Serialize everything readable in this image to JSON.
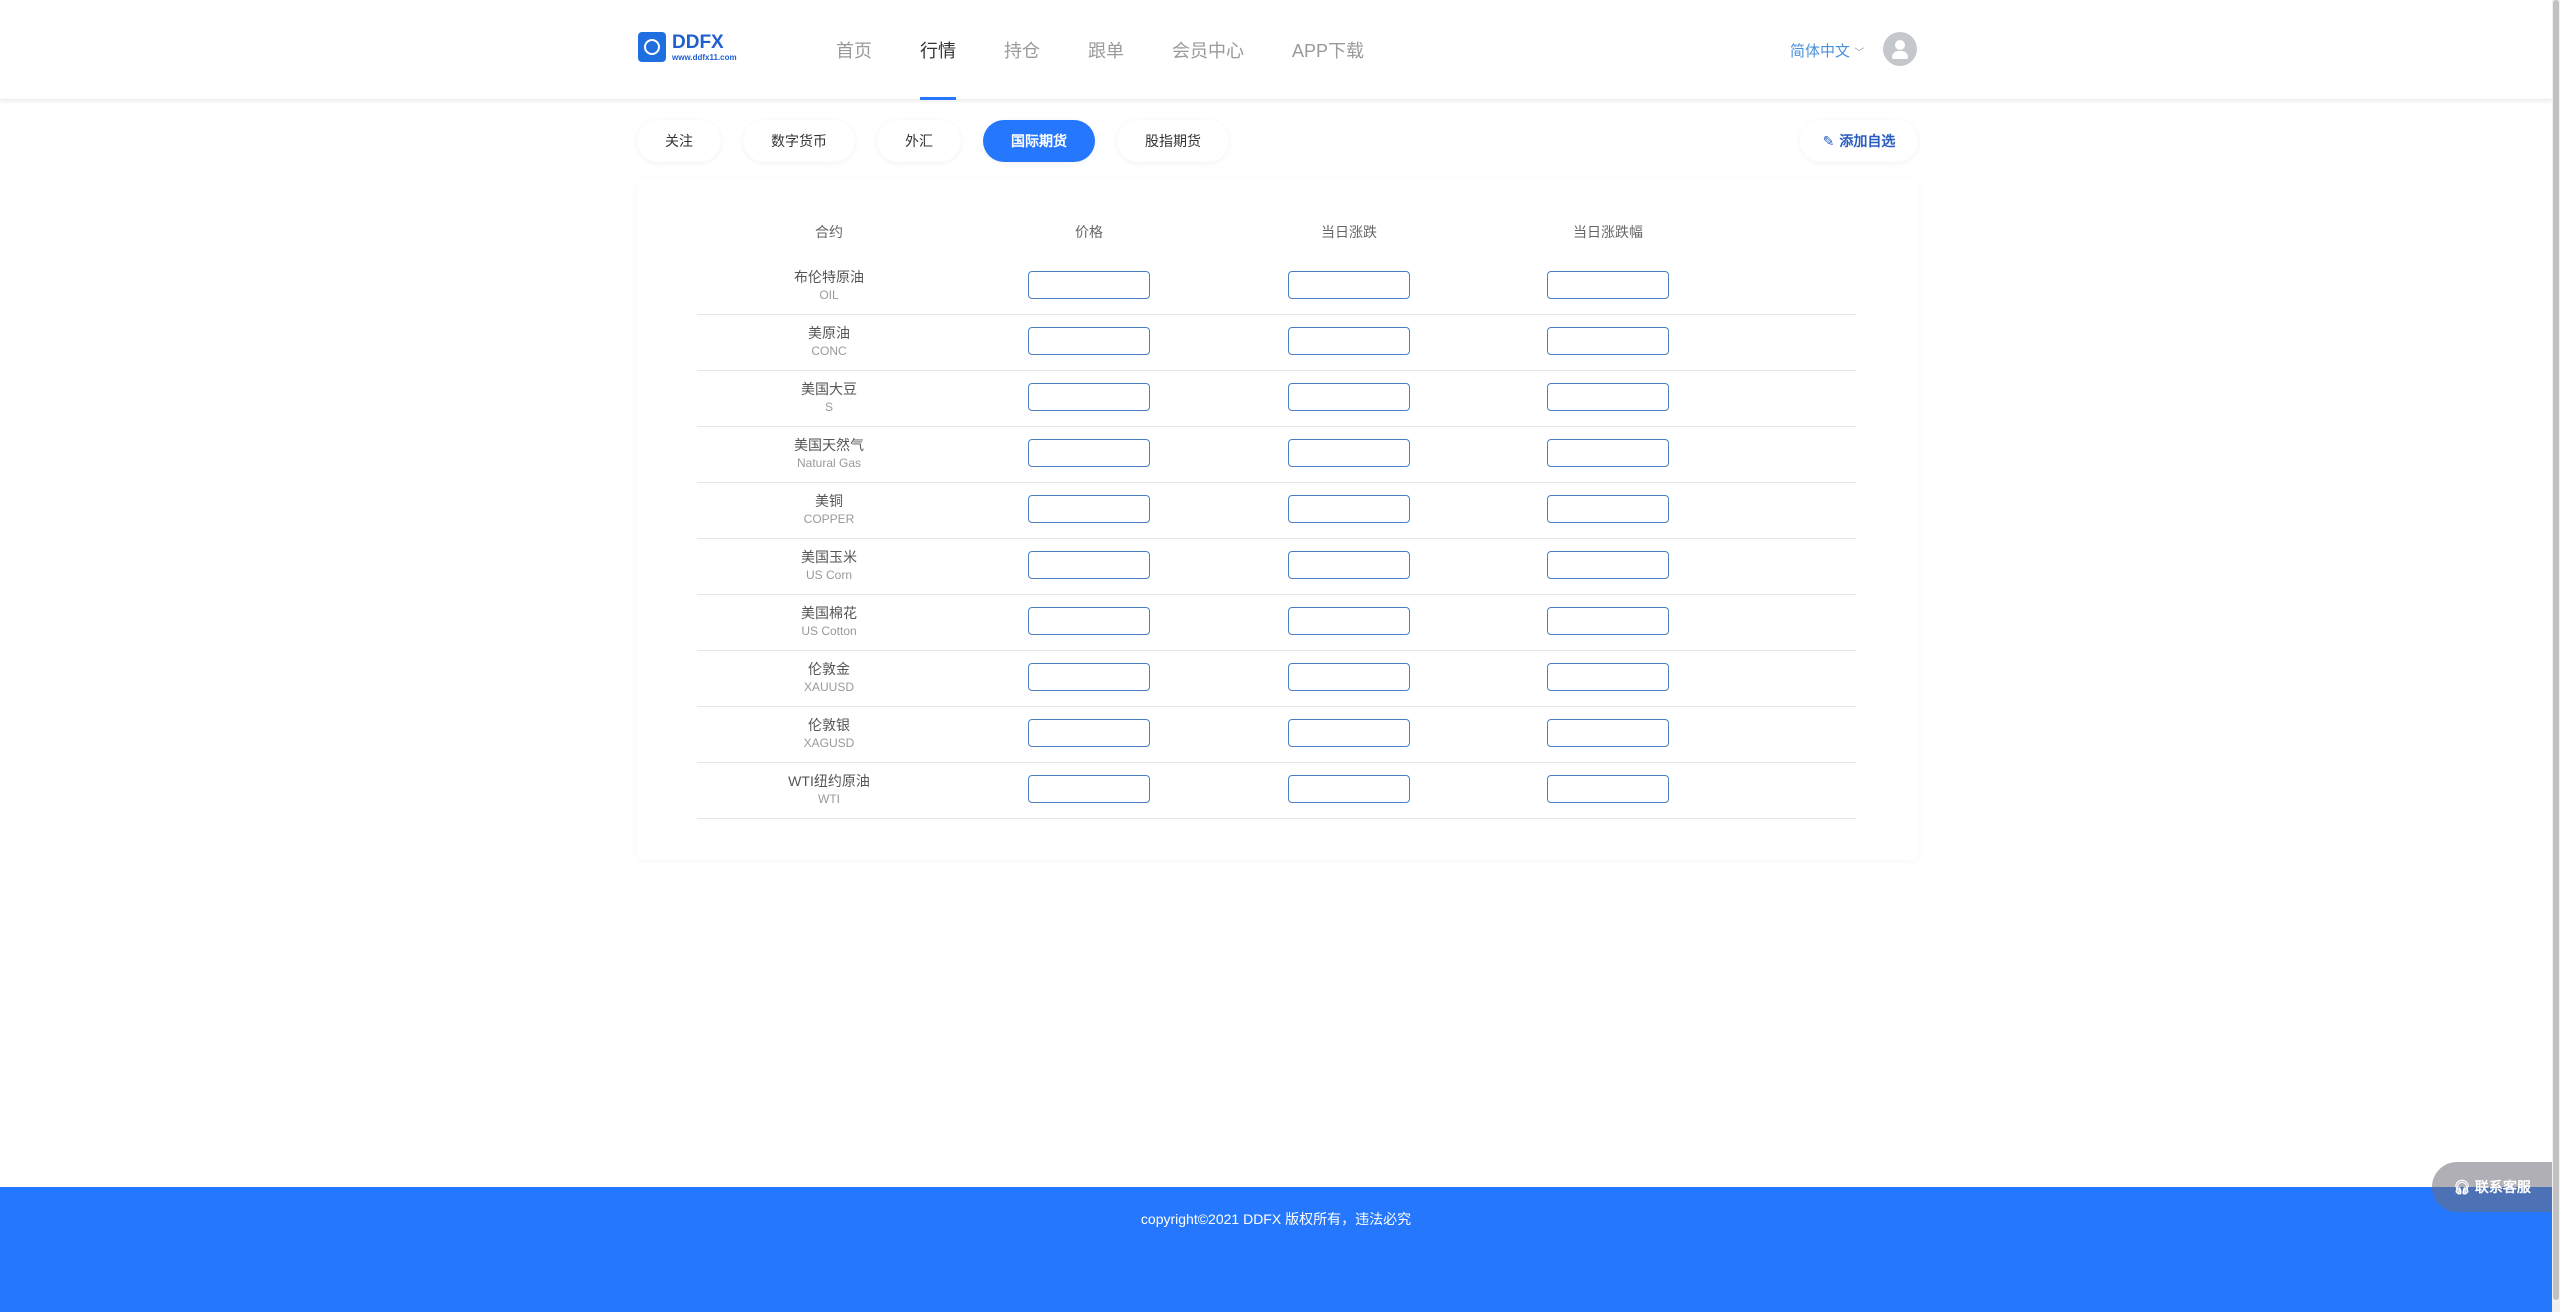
{
  "header": {
    "logo": {
      "name": "DDFX",
      "url_text": "www.ddfx11.com"
    },
    "nav": [
      {
        "label": "首页"
      },
      {
        "label": "行情",
        "active": true
      },
      {
        "label": "持仓"
      },
      {
        "label": "跟单"
      },
      {
        "label": "会员中心"
      },
      {
        "label": "APP下载"
      }
    ],
    "language": "简体中文"
  },
  "tabs": [
    {
      "label": "关注"
    },
    {
      "label": "数字货币"
    },
    {
      "label": "外汇"
    },
    {
      "label": "国际期货",
      "active": true
    },
    {
      "label": "股指期货"
    }
  ],
  "add_watchlist": "添加自选",
  "table": {
    "columns": [
      "合约",
      "价格",
      "当日涨跌",
      "当日涨跌幅"
    ],
    "rows": [
      {
        "name": "布伦特原油",
        "code": "OIL"
      },
      {
        "name": "美原油",
        "code": "CONC"
      },
      {
        "name": "美国大豆",
        "code": "S"
      },
      {
        "name": "美国天然气",
        "code": "Natural Gas"
      },
      {
        "name": "美铜",
        "code": "COPPER"
      },
      {
        "name": "美国玉米",
        "code": "US Corn"
      },
      {
        "name": "美国棉花",
        "code": "US Cotton"
      },
      {
        "name": "伦敦金",
        "code": "XAUUSD"
      },
      {
        "name": "伦敦银",
        "code": "XAGUSD"
      },
      {
        "name": "WTI纽约原油",
        "code": "WTI"
      }
    ]
  },
  "footer": {
    "copyright": "copyright©2021 DDFX 版权所有，违法必究"
  },
  "contact": "联系客服",
  "colors": {
    "accent": "#2577fe",
    "footer": "#2577fe"
  }
}
